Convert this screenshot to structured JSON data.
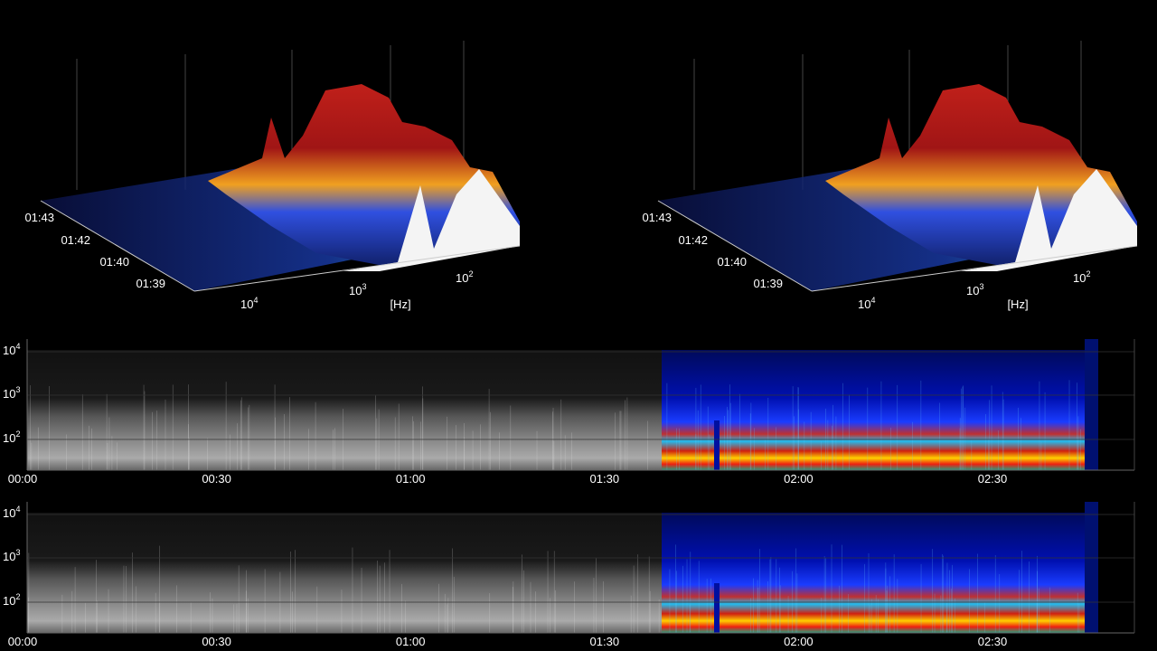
{
  "waterfalls": [
    {
      "time_labels": [
        "01:43",
        "01:42",
        "01:40",
        "01:39"
      ],
      "freq_ticks": [
        {
          "base": "10",
          "exp": "4"
        },
        {
          "base": "10",
          "exp": "3"
        },
        {
          "base": "10",
          "exp": "2"
        }
      ],
      "freq_unit": "[Hz]"
    },
    {
      "time_labels": [
        "01:43",
        "01:42",
        "01:40",
        "01:39"
      ],
      "freq_ticks": [
        {
          "base": "10",
          "exp": "4"
        },
        {
          "base": "10",
          "exp": "3"
        },
        {
          "base": "10",
          "exp": "2"
        }
      ],
      "freq_unit": "[Hz]"
    }
  ],
  "spectrograms": [
    {
      "y_ticks": [
        {
          "base": "10",
          "exp": "4"
        },
        {
          "base": "10",
          "exp": "3"
        },
        {
          "base": "10",
          "exp": "2"
        }
      ],
      "x_ticks": [
        "00:00",
        "00:30",
        "01:00",
        "01:30",
        "02:00",
        "02:30"
      ]
    },
    {
      "y_ticks": [
        {
          "base": "10",
          "exp": "4"
        },
        {
          "base": "10",
          "exp": "3"
        },
        {
          "base": "10",
          "exp": "2"
        }
      ],
      "x_ticks": [
        "00:00",
        "00:30",
        "01:00",
        "01:30",
        "02:00",
        "02:30"
      ]
    }
  ]
}
